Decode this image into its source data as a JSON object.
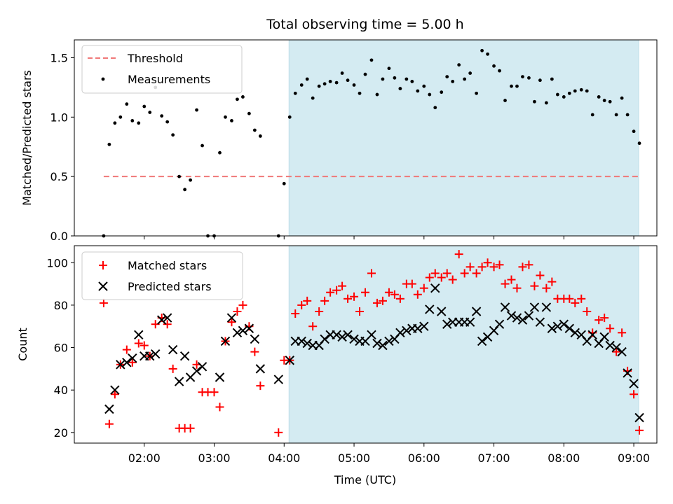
{
  "chart_data": [
    {
      "type": "scatter",
      "title": "Total observing time = 5.00 h",
      "xlabel": "",
      "ylabel": "Matched/Predicted stars",
      "xlim_hours": [
        1.0,
        9.33
      ],
      "ylim": [
        0,
        1.65
      ],
      "yticks": [
        "0.0",
        "0.5",
        "1.0",
        "1.5"
      ],
      "legend": {
        "position": "top-left",
        "entries": [
          "Threshold",
          "Measurements"
        ]
      },
      "shaded_region_hours": [
        4.07,
        9.07
      ],
      "shade_color": "#d4ebf2",
      "threshold": {
        "name": "Threshold",
        "value": 0.5,
        "x_start_hours": 1.42,
        "x_end_hours": 9.07,
        "color": "#f07878"
      },
      "series": [
        {
          "name": "Measurements",
          "marker": "dot",
          "color": "#000000",
          "x": [
            1.42,
            1.5,
            1.58,
            1.66,
            1.75,
            1.83,
            1.92,
            2.0,
            2.08,
            2.16,
            2.25,
            2.33,
            2.41,
            2.5,
            2.58,
            2.66,
            2.75,
            2.83,
            2.91,
            3.0,
            3.08,
            3.16,
            3.25,
            3.33,
            3.41,
            3.5,
            3.58,
            3.66,
            3.92,
            4.0,
            4.08,
            4.16,
            4.25,
            4.33,
            4.41,
            4.5,
            4.58,
            4.66,
            4.75,
            4.83,
            4.91,
            5.0,
            5.08,
            5.16,
            5.25,
            5.33,
            5.41,
            5.5,
            5.58,
            5.66,
            5.75,
            5.83,
            5.91,
            6.0,
            6.08,
            6.16,
            6.25,
            6.33,
            6.41,
            6.5,
            6.58,
            6.66,
            6.75,
            6.83,
            6.91,
            7.0,
            7.08,
            7.16,
            7.25,
            7.33,
            7.41,
            7.5,
            7.58,
            7.66,
            7.75,
            7.83,
            7.91,
            8.0,
            8.08,
            8.16,
            8.25,
            8.33,
            8.41,
            8.5,
            8.58,
            8.66,
            8.75,
            8.83,
            8.91,
            9.0,
            9.08
          ],
          "y": [
            0.0,
            0.77,
            0.95,
            1.0,
            1.11,
            0.97,
            0.95,
            1.09,
            1.04,
            1.25,
            1.01,
            0.96,
            0.85,
            0.5,
            0.39,
            0.47,
            1.06,
            0.76,
            0.0,
            0.0,
            0.7,
            1.0,
            0.97,
            1.15,
            1.17,
            1.03,
            0.89,
            0.84,
            0.0,
            0.44,
            1.0,
            1.2,
            1.27,
            1.32,
            1.16,
            1.26,
            1.28,
            1.3,
            1.29,
            1.37,
            1.31,
            1.27,
            1.2,
            1.36,
            1.48,
            1.19,
            1.32,
            1.41,
            1.33,
            1.24,
            1.32,
            1.3,
            1.22,
            1.26,
            1.19,
            1.08,
            1.21,
            1.34,
            1.3,
            1.44,
            1.32,
            1.37,
            1.2,
            1.56,
            1.53,
            1.43,
            1.39,
            1.14,
            1.26,
            1.26,
            1.34,
            1.33,
            1.13,
            1.31,
            1.12,
            1.32,
            1.19,
            1.17,
            1.2,
            1.22,
            1.23,
            1.22,
            1.02,
            1.17,
            1.14,
            1.13,
            1.02,
            1.16,
            1.02,
            0.88,
            0.78
          ]
        }
      ]
    },
    {
      "type": "scatter",
      "title": "",
      "xlabel": "Time (UTC)",
      "ylabel": "Count",
      "xlim_hours": [
        1.0,
        9.33
      ],
      "ylim": [
        15,
        108
      ],
      "yticks": [
        "20",
        "40",
        "60",
        "80",
        "100"
      ],
      "xticks": [
        "02:00",
        "03:00",
        "04:00",
        "05:00",
        "06:00",
        "07:00",
        "08:00",
        "09:00"
      ],
      "legend": {
        "position": "top-left",
        "entries": [
          "Matched stars",
          "Predicted stars"
        ]
      },
      "shaded_region_hours": [
        4.07,
        9.07
      ],
      "shade_color": "#d4ebf2",
      "series": [
        {
          "name": "Matched stars",
          "marker": "plus",
          "color": "#ff0000",
          "x": [
            1.42,
            1.5,
            1.58,
            1.66,
            1.75,
            1.83,
            1.92,
            2.0,
            2.08,
            2.16,
            2.25,
            2.33,
            2.41,
            2.5,
            2.58,
            2.66,
            2.75,
            2.83,
            2.91,
            3.0,
            3.08,
            3.16,
            3.25,
            3.33,
            3.41,
            3.5,
            3.58,
            3.66,
            3.92,
            4.0,
            4.08,
            4.16,
            4.25,
            4.33,
            4.41,
            4.5,
            4.58,
            4.66,
            4.75,
            4.83,
            4.91,
            5.0,
            5.08,
            5.16,
            5.25,
            5.33,
            5.41,
            5.5,
            5.58,
            5.66,
            5.75,
            5.83,
            5.91,
            6.0,
            6.08,
            6.16,
            6.25,
            6.33,
            6.41,
            6.5,
            6.58,
            6.66,
            6.75,
            6.83,
            6.91,
            7.0,
            7.08,
            7.16,
            7.25,
            7.33,
            7.41,
            7.5,
            7.58,
            7.66,
            7.75,
            7.83,
            7.91,
            8.0,
            8.08,
            8.16,
            8.25,
            8.33,
            8.41,
            8.5,
            8.58,
            8.66,
            8.75,
            8.83,
            8.91,
            9.0,
            9.08
          ],
          "y": [
            81,
            24,
            38,
            52,
            59,
            53,
            62,
            61,
            56,
            71,
            74,
            71,
            50,
            22,
            22,
            22,
            52,
            39,
            39,
            39,
            32,
            63,
            72,
            77,
            80,
            70,
            58,
            42,
            20,
            54,
            54,
            76,
            80,
            82,
            70,
            77,
            82,
            86,
            87,
            89,
            83,
            84,
            77,
            86,
            95,
            81,
            82,
            86,
            85,
            83,
            90,
            90,
            85,
            88,
            93,
            95,
            93,
            95,
            92,
            104,
            95,
            98,
            95,
            98,
            100,
            98,
            99,
            90,
            92,
            88,
            98,
            99,
            89,
            94,
            88,
            91,
            83,
            83,
            83,
            81,
            83,
            77,
            67,
            73,
            74,
            69,
            58,
            67,
            49,
            38,
            21
          ]
        },
        {
          "name": "Predicted stars",
          "marker": "x",
          "color": "#000000",
          "x": [
            1.5,
            1.58,
            1.66,
            1.75,
            1.83,
            1.92,
            2.0,
            2.08,
            2.16,
            2.25,
            2.33,
            2.41,
            2.5,
            2.58,
            2.66,
            2.75,
            2.83,
            3.08,
            3.16,
            3.25,
            3.33,
            3.41,
            3.5,
            3.58,
            3.66,
            3.92,
            4.08,
            4.16,
            4.25,
            4.33,
            4.41,
            4.5,
            4.58,
            4.66,
            4.75,
            4.83,
            4.91,
            5.0,
            5.08,
            5.16,
            5.25,
            5.33,
            5.41,
            5.5,
            5.58,
            5.66,
            5.75,
            5.83,
            5.91,
            6.0,
            6.08,
            6.16,
            6.25,
            6.33,
            6.41,
            6.5,
            6.58,
            6.66,
            6.75,
            6.83,
            6.91,
            7.0,
            7.08,
            7.16,
            7.25,
            7.33,
            7.41,
            7.5,
            7.58,
            7.66,
            7.75,
            7.83,
            7.91,
            8.0,
            8.08,
            8.16,
            8.25,
            8.33,
            8.41,
            8.5,
            8.58,
            8.66,
            8.75,
            8.83,
            8.91,
            9.0,
            9.08
          ],
          "y": [
            31,
            40,
            52,
            53,
            55,
            66,
            56,
            56,
            57,
            73,
            74,
            59,
            44,
            56,
            46,
            49,
            51,
            46,
            63,
            74,
            67,
            68,
            69,
            64,
            50,
            45,
            54,
            63,
            63,
            62,
            61,
            61,
            64,
            66,
            66,
            65,
            66,
            64,
            63,
            63,
            66,
            62,
            61,
            63,
            64,
            67,
            68,
            69,
            69,
            70,
            78,
            88,
            77,
            71,
            72,
            72,
            72,
            72,
            77,
            63,
            65,
            68,
            71,
            79,
            75,
            74,
            73,
            75,
            79,
            72,
            79,
            69,
            70,
            71,
            69,
            67,
            66,
            63,
            66,
            62,
            65,
            61,
            60,
            58,
            48,
            43,
            27
          ]
        }
      ]
    }
  ]
}
